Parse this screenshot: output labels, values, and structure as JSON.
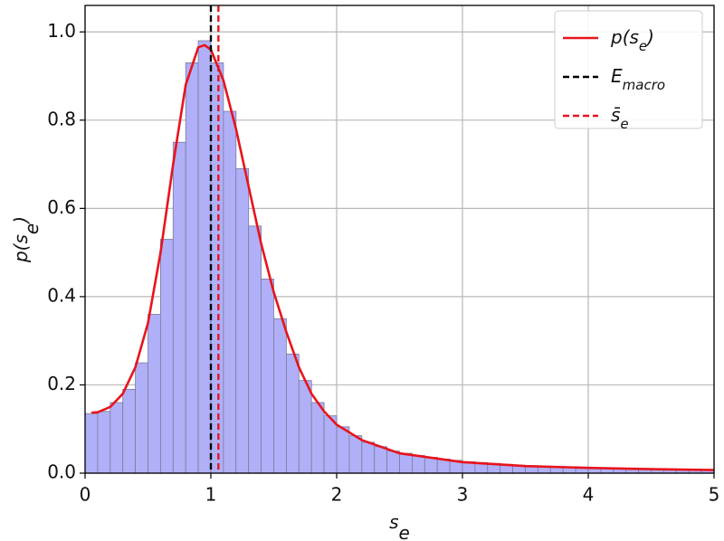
{
  "chart_data": {
    "type": "histogram",
    "xlabel": [
      {
        "text": "s"
      },
      {
        "text": "e",
        "sub": true
      }
    ],
    "ylabel": [
      {
        "text": "p(s"
      },
      {
        "text": "e",
        "sub": true
      },
      {
        "text": ")"
      }
    ],
    "bins": [
      0,
      0.1,
      0.2,
      0.3,
      0.4,
      0.5,
      0.6,
      0.7,
      0.8,
      0.9,
      1.0,
      1.1,
      1.2,
      1.3,
      1.4,
      1.5,
      1.6,
      1.7,
      1.8,
      1.9,
      2.0,
      2.1,
      2.2,
      2.3,
      2.4,
      2.5,
      2.6,
      2.7,
      2.8,
      2.9,
      3.0,
      3.1,
      3.2,
      3.3,
      3.4,
      3.5,
      3.6,
      3.7,
      3.8,
      3.9,
      4.0,
      4.1,
      4.2,
      4.3,
      4.4,
      4.5,
      4.6,
      4.7,
      4.8,
      4.9,
      5.0
    ],
    "values": [
      0.135,
      0.14,
      0.16,
      0.19,
      0.25,
      0.36,
      0.53,
      0.75,
      0.93,
      0.98,
      0.93,
      0.82,
      0.69,
      0.56,
      0.44,
      0.35,
      0.27,
      0.21,
      0.16,
      0.13,
      0.105,
      0.085,
      0.07,
      0.06,
      0.05,
      0.045,
      0.04,
      0.036,
      0.032,
      0.029,
      0.026,
      0.024,
      0.022,
      0.02,
      0.018,
      0.017,
      0.015,
      0.014,
      0.013,
      0.012,
      0.011,
      0.01,
      0.01,
      0.009,
      0.008,
      0.008,
      0.007,
      0.007,
      0.006,
      0.006
    ],
    "color": "#b0b0f8",
    "edgecolor": "#7a7a9c",
    "series": [
      {
        "name": [
          {
            "text": "p(s"
          },
          {
            "text": "e",
            "sub": true
          },
          {
            "text": ")"
          }
        ],
        "color": "#e8141c",
        "x": [
          0.05,
          0.1,
          0.2,
          0.3,
          0.4,
          0.5,
          0.6,
          0.7,
          0.8,
          0.9,
          0.95,
          1.0,
          1.1,
          1.2,
          1.3,
          1.4,
          1.5,
          1.6,
          1.7,
          1.8,
          1.9,
          2.0,
          2.2,
          2.5,
          3.0,
          3.5,
          4.0,
          4.5,
          5.0
        ],
        "values": [
          0.137,
          0.138,
          0.15,
          0.18,
          0.24,
          0.34,
          0.5,
          0.7,
          0.88,
          0.965,
          0.97,
          0.96,
          0.89,
          0.78,
          0.65,
          0.52,
          0.41,
          0.32,
          0.24,
          0.18,
          0.14,
          0.11,
          0.075,
          0.045,
          0.025,
          0.016,
          0.012,
          0.009,
          0.007
        ]
      }
    ],
    "vlines": [
      {
        "name": [
          {
            "text": "E"
          },
          {
            "text": "macro",
            "sub": true
          }
        ],
        "color": "#000000",
        "x": 1.0
      },
      {
        "name": [
          {
            "text": "s̄"
          },
          {
            "text": "e",
            "sub": true
          }
        ],
        "color": "#e8141c",
        "x": 1.06
      }
    ],
    "xlim": [
      0,
      5
    ],
    "xticks": [
      0,
      1,
      2,
      3,
      4,
      5
    ],
    "ylim": [
      0,
      1.06
    ],
    "yticks": [
      {
        "value": 0,
        "label": "0.0"
      },
      {
        "value": 0.2,
        "label": "0.2"
      },
      {
        "value": 0.4,
        "label": "0.4"
      },
      {
        "value": 0.6,
        "label": "0.6"
      },
      {
        "value": 0.8,
        "label": "0.8"
      },
      {
        "value": 1.0,
        "label": "1.0"
      }
    ],
    "grid": true,
    "legend": "upper right"
  }
}
